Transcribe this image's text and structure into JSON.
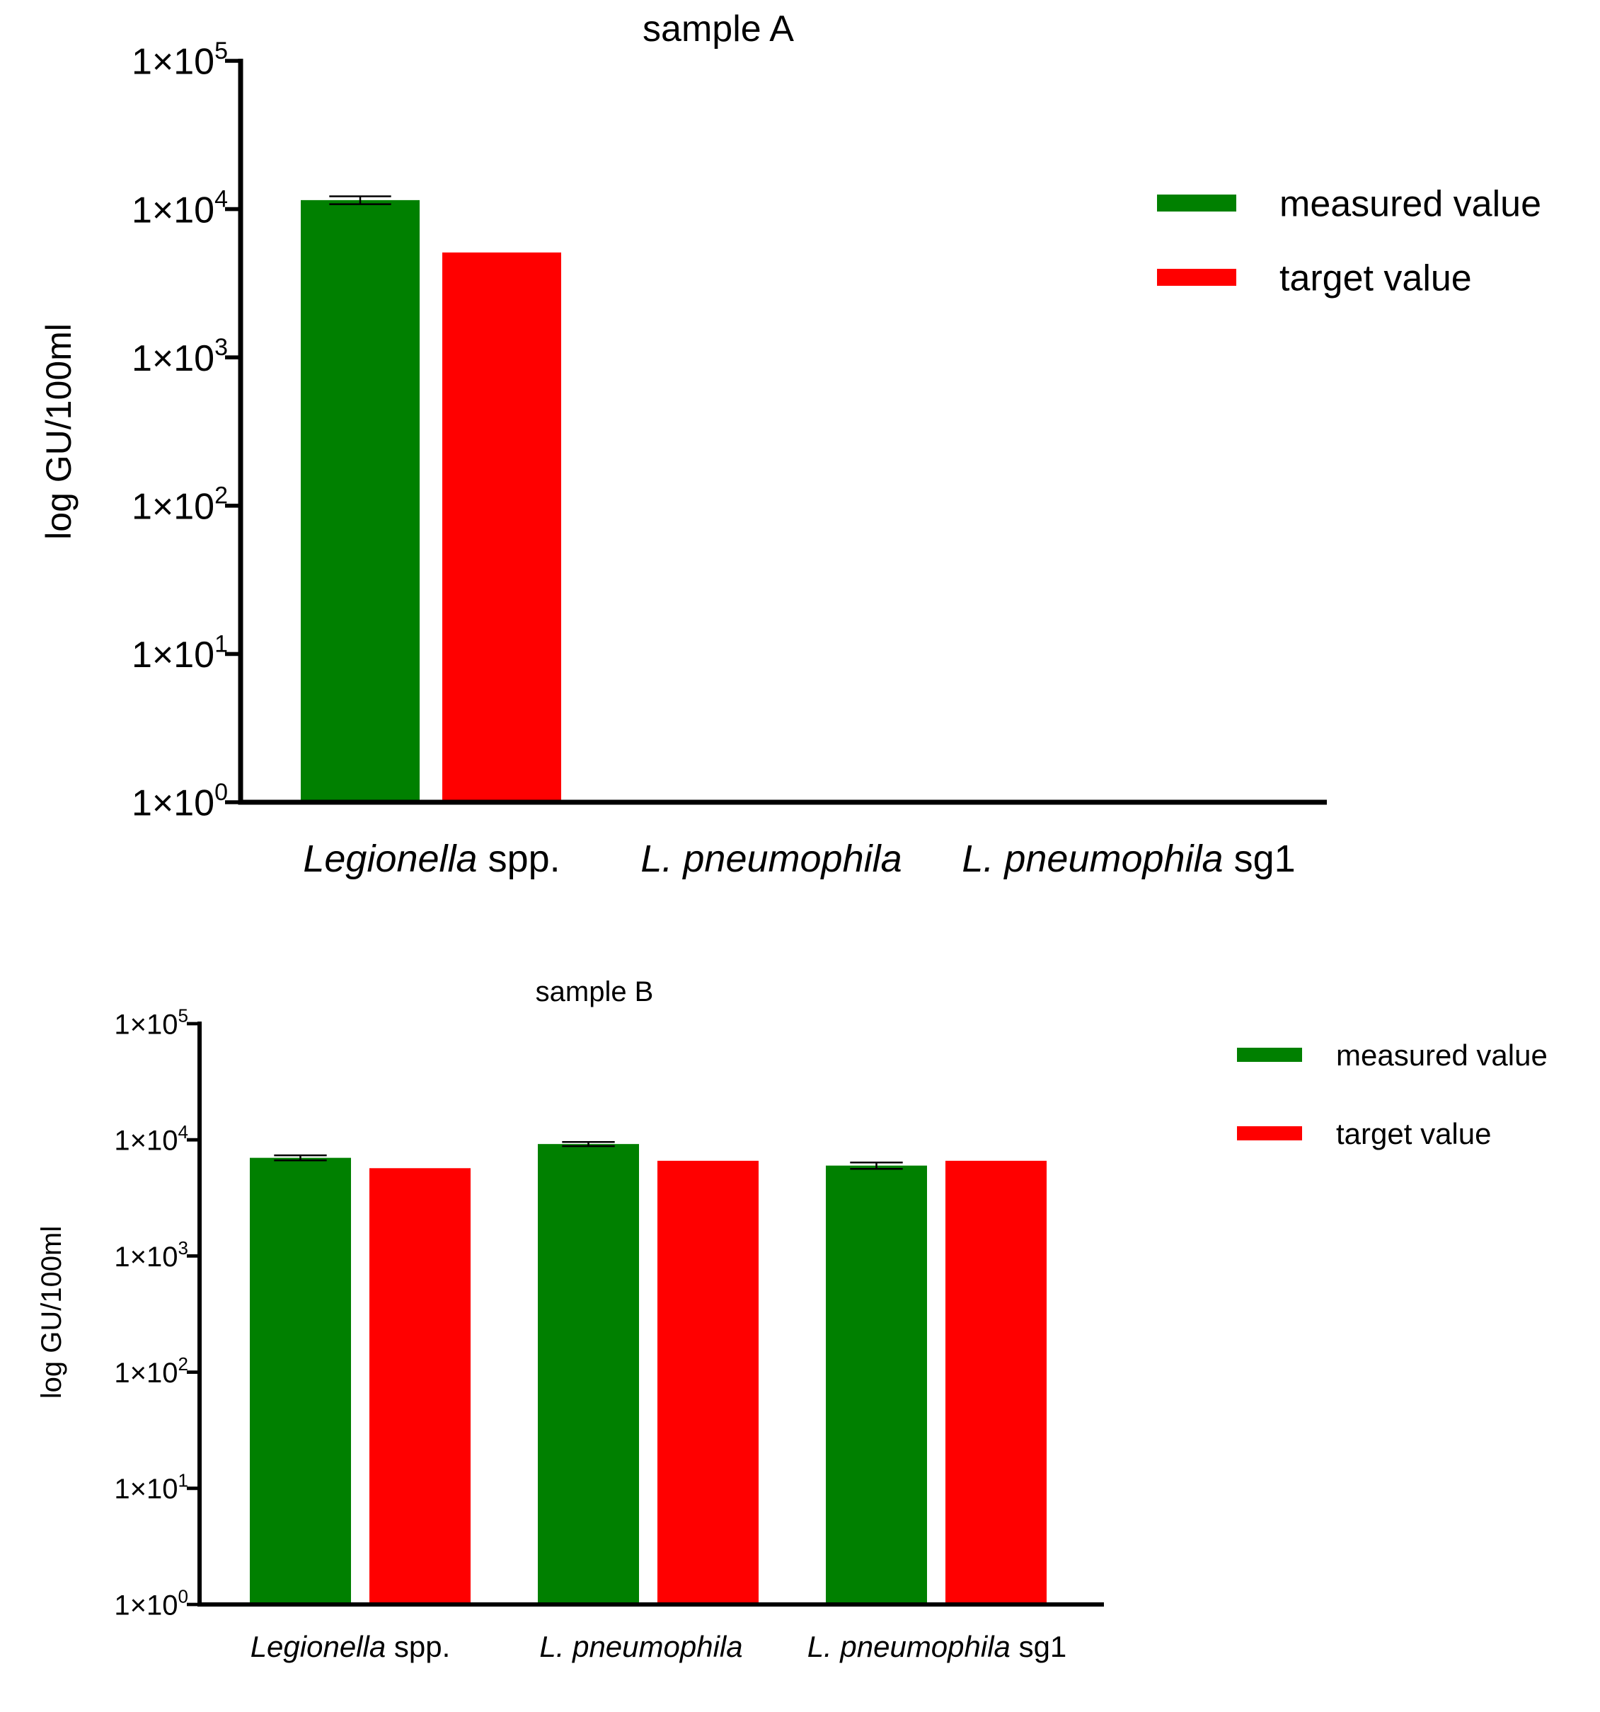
{
  "colors": {
    "measured": "#008000",
    "target": "#ff0000",
    "axis": "#000000"
  },
  "chart_data": [
    {
      "type": "bar",
      "title": "sample  A",
      "ylabel": "log GU/100ml",
      "xlabel": "",
      "yscale": "log",
      "ylim": [
        1,
        100000
      ],
      "ytick_exponents": [
        0,
        1,
        2,
        3,
        4,
        5
      ],
      "ytick_prefix": "1×10",
      "categories": [
        {
          "italic": "Legionella",
          "normal": " spp."
        },
        {
          "italic": "L. pneumophila",
          "normal": ""
        },
        {
          "italic": "L. pneumophila",
          "normal": " sg1"
        }
      ],
      "series": [
        {
          "name": "measured value",
          "color_key": "measured",
          "values": [
            11500,
            null,
            null
          ],
          "errors": [
            700,
            null,
            null
          ]
        },
        {
          "name": "target value",
          "color_key": "target",
          "values": [
            5100,
            null,
            null
          ],
          "errors": [
            null,
            null,
            null
          ]
        }
      ],
      "legend_position": "right"
    },
    {
      "type": "bar",
      "title": "sample  B",
      "ylabel": "log GU/100ml",
      "xlabel": "",
      "yscale": "log",
      "ylim": [
        1,
        100000
      ],
      "ytick_exponents": [
        0,
        1,
        2,
        3,
        4,
        5
      ],
      "ytick_prefix": "1×10",
      "categories": [
        {
          "italic": "Legionella",
          "normal": " spp."
        },
        {
          "italic": "L. pneumophila",
          "normal": ""
        },
        {
          "italic": "L. pneumophila",
          "normal": " sg1"
        }
      ],
      "series": [
        {
          "name": "measured value",
          "color_key": "measured",
          "values": [
            7000,
            9200,
            6000
          ],
          "errors": [
            350,
            380,
            380
          ]
        },
        {
          "name": "target  value",
          "color_key": "target",
          "values": [
            5700,
            6600,
            6600
          ],
          "errors": [
            null,
            null,
            null
          ]
        }
      ],
      "legend_position": "right"
    }
  ]
}
